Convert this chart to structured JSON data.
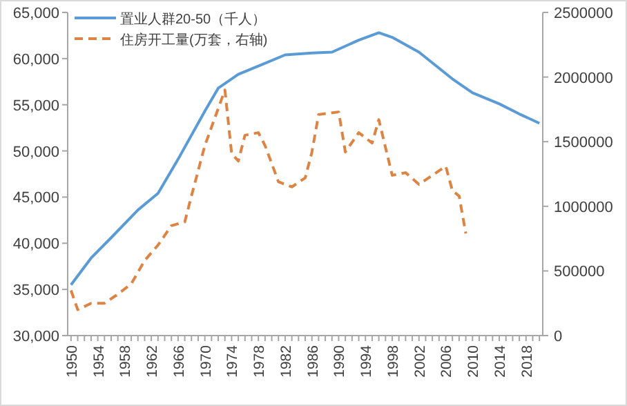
{
  "chart_data": {
    "type": "line",
    "legend": "top left",
    "grid": false,
    "xlim": [
      1949.5,
      2020.5
    ],
    "xticks": [
      1950,
      {
        "value": 1951,
        "label": null
      },
      {
        "value": 1952,
        "label": null
      },
      {
        "value": 1953,
        "label": null
      },
      1954,
      {
        "value": 1955,
        "label": null
      },
      {
        "value": 1956,
        "label": null
      },
      {
        "value": 1957,
        "label": null
      },
      1958,
      {
        "value": 1959,
        "label": null
      },
      {
        "value": 1960,
        "label": null
      },
      {
        "value": 1961,
        "label": null
      },
      1962,
      {
        "value": 1963,
        "label": null
      },
      {
        "value": 1964,
        "label": null
      },
      {
        "value": 1965,
        "label": null
      },
      1966,
      {
        "value": 1967,
        "label": null
      },
      {
        "value": 1968,
        "label": null
      },
      {
        "value": 1969,
        "label": null
      },
      1970,
      {
        "value": 1971,
        "label": null
      },
      {
        "value": 1972,
        "label": null
      },
      {
        "value": 1973,
        "label": null
      },
      1974,
      {
        "value": 1975,
        "label": null
      },
      {
        "value": 1976,
        "label": null
      },
      {
        "value": 1977,
        "label": null
      },
      1978,
      {
        "value": 1979,
        "label": null
      },
      {
        "value": 1980,
        "label": null
      },
      {
        "value": 1981,
        "label": null
      },
      1982,
      {
        "value": 1983,
        "label": null
      },
      {
        "value": 1984,
        "label": null
      },
      {
        "value": 1985,
        "label": null
      },
      1986,
      {
        "value": 1987,
        "label": null
      },
      {
        "value": 1988,
        "label": null
      },
      {
        "value": 1989,
        "label": null
      },
      1990,
      {
        "value": 1991,
        "label": null
      },
      {
        "value": 1992,
        "label": null
      },
      {
        "value": 1993,
        "label": null
      },
      1994,
      {
        "value": 1995,
        "label": null
      },
      {
        "value": 1996,
        "label": null
      },
      {
        "value": 1997,
        "label": null
      },
      1998,
      {
        "value": 1999,
        "label": null
      },
      {
        "value": 2000,
        "label": null
      },
      {
        "value": 2001,
        "label": null
      },
      2002,
      {
        "value": 2003,
        "label": null
      },
      {
        "value": 2004,
        "label": null
      },
      {
        "value": 2005,
        "label": null
      },
      2006,
      {
        "value": 2007,
        "label": null
      },
      {
        "value": 2008,
        "label": null
      },
      {
        "value": 2009,
        "label": null
      },
      2010,
      {
        "value": 2011,
        "label": null
      },
      {
        "value": 2012,
        "label": null
      },
      {
        "value": 2013,
        "label": null
      },
      2014,
      {
        "value": 2015,
        "label": null
      },
      {
        "value": 2016,
        "label": null
      },
      {
        "value": 2017,
        "label": null
      },
      2018,
      {
        "value": 2019,
        "label": null
      },
      {
        "value": 2020,
        "label": null
      }
    ],
    "ylim": [
      30000,
      65000
    ],
    "yticks": [
      {
        "value": 30000,
        "label": "30,000"
      },
      {
        "value": 35000,
        "label": "35,000"
      },
      {
        "value": 40000,
        "label": "40,000"
      },
      {
        "value": 45000,
        "label": "45,000"
      },
      {
        "value": 50000,
        "label": "50,000"
      },
      {
        "value": 55000,
        "label": "55,000"
      },
      {
        "value": 60000,
        "label": "60,000"
      },
      {
        "value": 65000,
        "label": "65,000"
      }
    ],
    "y2lim": [
      0,
      2500000
    ],
    "y2ticks": [
      0,
      500000,
      1000000,
      1500000,
      2000000,
      2500000
    ],
    "series": [
      {
        "name": "置业人群20-50（千人）",
        "color": "#5b9bd5",
        "line_style": "solid",
        "x": [
          1950,
          1953,
          1956,
          1960,
          1963,
          1966,
          1970,
          1972,
          1975,
          1979,
          1982,
          1986,
          1989,
          1993,
          1996,
          1998,
          2002,
          2007,
          2010,
          2014,
          2017,
          2020
        ],
        "values": [
          35500,
          38400,
          40600,
          43600,
          45400,
          49100,
          54300,
          56800,
          58300,
          59500,
          60400,
          60600,
          60700,
          62000,
          62800,
          62300,
          60700,
          57800,
          56300,
          55100,
          54000,
          53000
        ]
      },
      {
        "name": "住房开工量(万套，右轴)",
        "color": "#dd8444",
        "line_style": "dashed",
        "axis": "y2",
        "x": [
          1950,
          1951,
          1953,
          1955,
          1957,
          1959,
          1961,
          1963,
          1965,
          1967,
          1968,
          1970,
          1973,
          1974,
          1975,
          1976,
          1978,
          1979,
          1981,
          1983,
          1985,
          1986,
          1987,
          1990,
          1991,
          1993,
          1995,
          1996,
          1998,
          2000,
          2002,
          2006,
          2007,
          2008,
          2009
        ],
        "values": [
          350000,
          200000,
          250000,
          250000,
          320000,
          400000,
          580000,
          700000,
          850000,
          880000,
          1080000,
          1470000,
          1900000,
          1410000,
          1350000,
          1550000,
          1570000,
          1470000,
          1190000,
          1150000,
          1220000,
          1420000,
          1710000,
          1730000,
          1420000,
          1570000,
          1490000,
          1670000,
          1240000,
          1260000,
          1170000,
          1310000,
          1120000,
          1080000,
          790000
        ]
      }
    ]
  }
}
